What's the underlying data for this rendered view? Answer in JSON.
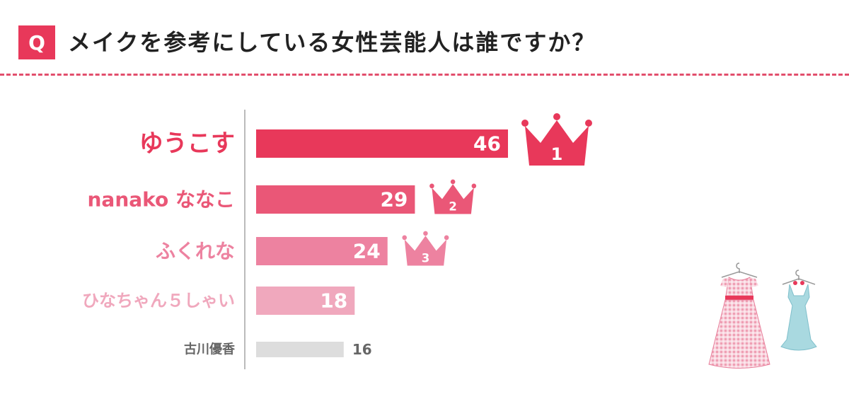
{
  "header": {
    "badge": "Q",
    "question": "メイクを参考にしている女性芸能人は誰ですか？"
  },
  "chart_data": {
    "type": "bar",
    "orientation": "horizontal",
    "title": "メイクを参考にしている女性芸能人は誰ですか？",
    "categories": [
      "ゆうこす",
      "nanako ななこ",
      "ふくれな",
      "ひなちゃん５しゃい",
      "古川優香"
    ],
    "values": [
      46,
      29,
      24,
      18,
      16
    ],
    "value_labels": [
      "46",
      "29",
      "24",
      "18",
      "16"
    ],
    "rank_badges": [
      "1",
      "2",
      "3"
    ],
    "colors": [
      "#e8385a",
      "#ea5777",
      "#ed82a0",
      "#f0a8bd",
      "#dddddd"
    ],
    "label_colors": [
      "#e8385a",
      "#ea5777",
      "#ed82a0",
      "#f0a8bd",
      "#666666"
    ],
    "crown_colors": [
      "#e8385a",
      "#ea5777",
      "#ed82a0"
    ],
    "xlim": [
      0,
      46
    ],
    "legend": "none",
    "grid": false
  },
  "decor": {
    "dress_pink_color": "#f0a8bd",
    "dress_blue_color": "#a9d9e0"
  }
}
